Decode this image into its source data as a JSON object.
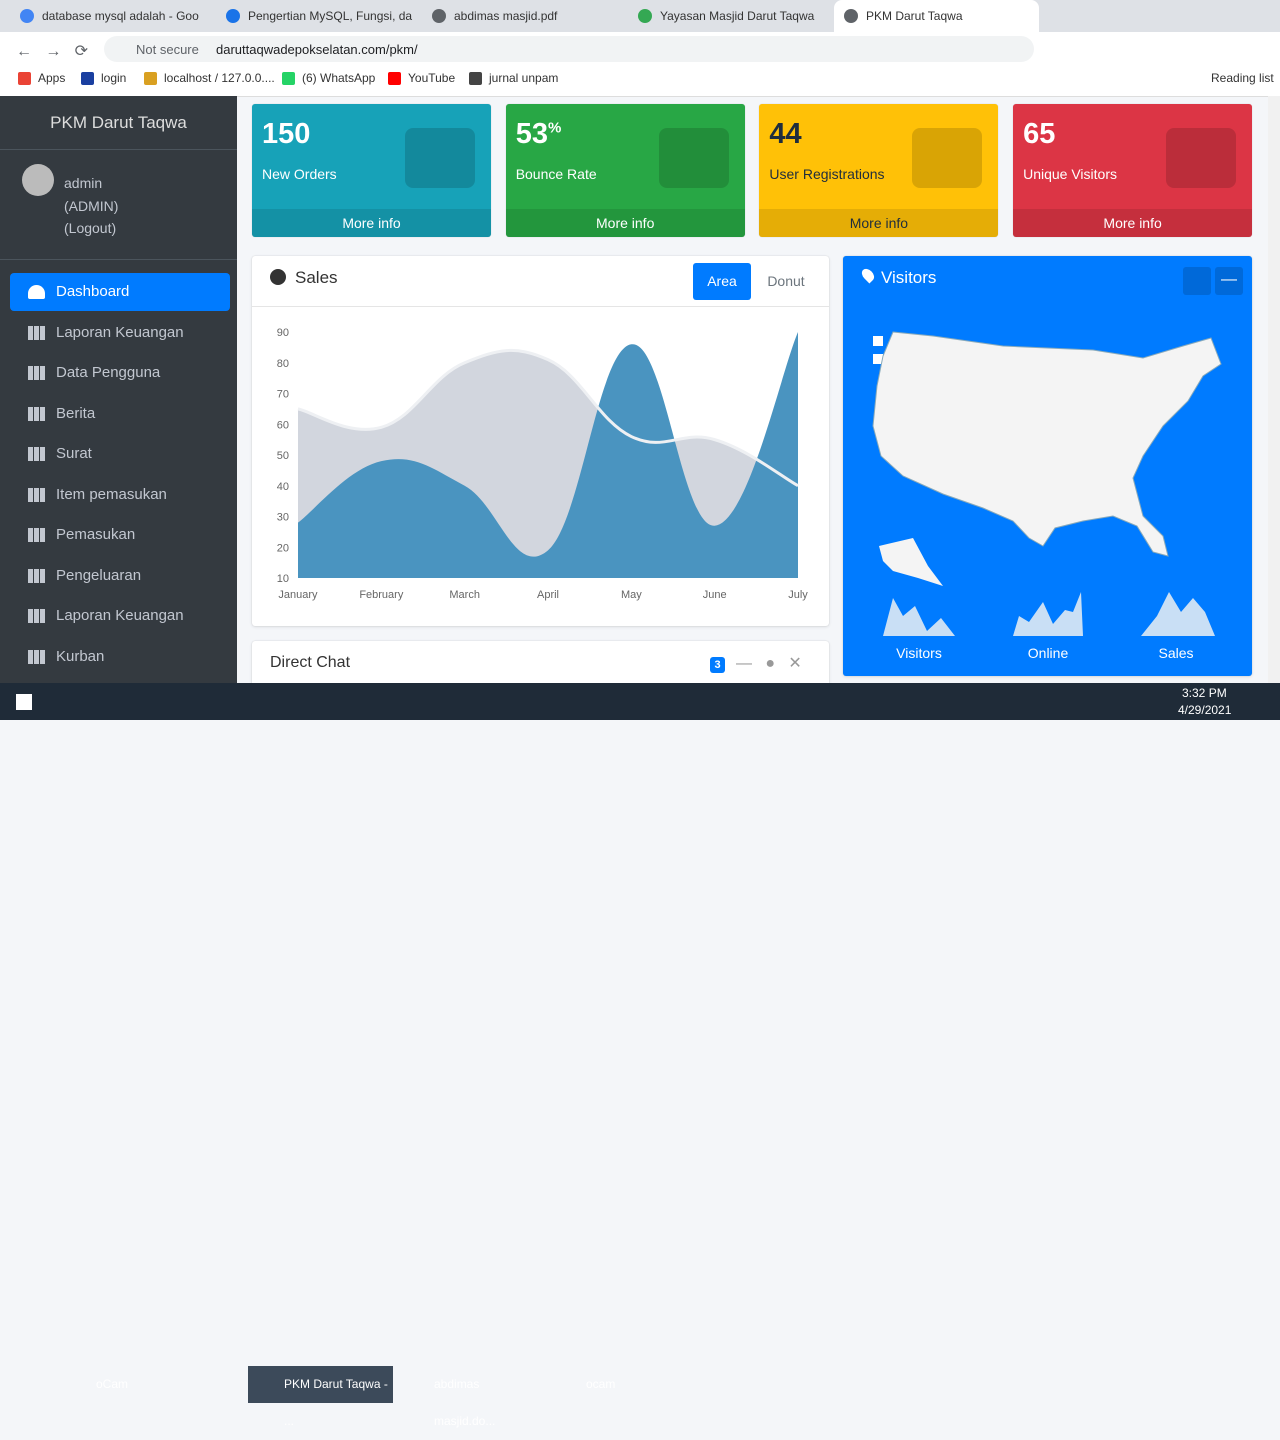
{
  "browser": {
    "tabs": [
      "database mysql adalah - Goo",
      "Pengertian MySQL, Fungsi, da",
      "abdimas masjid.pdf",
      "Yayasan Masjid Darut Taqwa",
      "PKM Darut Taqwa"
    ],
    "not_secure": "Not secure",
    "url": "daruttaqwadepokselatan.com/pkm/",
    "bookmarks": [
      "Apps",
      "login",
      "localhost / 127.0.0....",
      "(6) WhatsApp",
      "YouTube",
      "jurnal unpam"
    ],
    "reading_list": "Reading list"
  },
  "sidebar": {
    "brand": "PKM Darut Taqwa",
    "user": "admin",
    "role": "(ADMIN)",
    "logout": "(Logout)",
    "menu": [
      "Dashboard",
      "Laporan Keuangan",
      "Data Pengguna",
      "Berita",
      "Surat",
      "Item pemasukan",
      "Pemasukan",
      "Pengeluaran",
      "Laporan Keuangan",
      "Kurban"
    ]
  },
  "info_boxes": [
    {
      "value": 150,
      "label": "New Orders",
      "more": "More info"
    },
    {
      "value": 53,
      "suffix": "%",
      "label": "Bounce Rate",
      "more": "More info"
    },
    {
      "value": 44,
      "label": "User Registrations",
      "more": "More info"
    },
    {
      "value": 65,
      "label": "Unique Visitors",
      "more": "More info"
    }
  ],
  "sales": {
    "title": "Sales",
    "tabs": [
      "Area",
      "Donut"
    ],
    "chart": {
      "type": "area",
      "categories": [
        "January",
        "February",
        "March",
        "April",
        "May",
        "June",
        "July"
      ],
      "series": [
        {
          "color": "#d2d6de",
          "values": [
            65,
            59,
            80,
            81,
            56,
            55,
            40
          ]
        },
        {
          "color": "#4a94c0",
          "values": [
            28,
            48,
            40,
            19,
            86,
            27,
            90
          ]
        }
      ],
      "ylim": [
        10,
        90
      ],
      "yticks": [
        10,
        20,
        30,
        40,
        50,
        60,
        70,
        80,
        90
      ]
    }
  },
  "visitors": {
    "title": "Visitors",
    "stats": [
      "Visitors",
      "Online",
      "Sales"
    ]
  },
  "chat": {
    "title": "Direct Chat",
    "badge": 3
  },
  "taskbar": {
    "items": [
      "oCam",
      "PKM Darut Taqwa - ...",
      "abdimas masjid.do...",
      "ocam"
    ],
    "time": "3:32 PM",
    "date": "4/29/2021"
  }
}
